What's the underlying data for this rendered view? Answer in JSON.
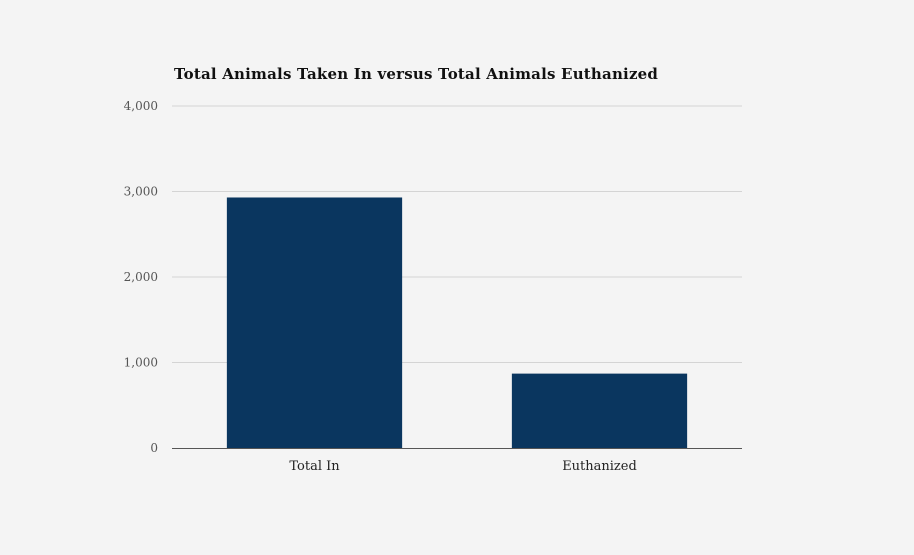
{
  "chart_data": {
    "type": "bar",
    "title": "Total Animals Taken In versus Total Animals Euthanized",
    "xlabel": "",
    "ylabel": "",
    "categories": [
      "Total In",
      "Euthanized"
    ],
    "values": [
      2930,
      870
    ],
    "ylim": [
      0,
      4000
    ],
    "yticks": [
      0,
      1000,
      2000,
      3000,
      4000
    ],
    "ytick_labels": [
      "0",
      "1,000",
      "2,000",
      "3,000",
      "4,000"
    ],
    "grid": true,
    "legend": "none",
    "bar_color": "#0a365f",
    "gridline_color": "#d4d4d4",
    "axis_color": "#555555",
    "background_color": "#f4f4f4"
  }
}
